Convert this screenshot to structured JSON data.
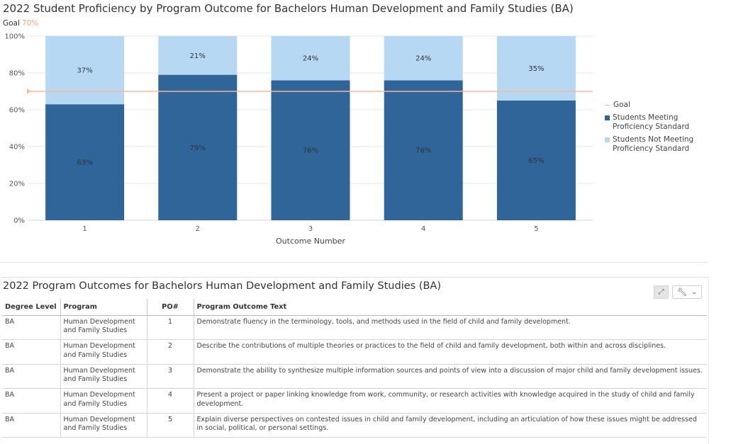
{
  "chart_data": {
    "type": "bar",
    "stacked": true,
    "title": "2022 Student Proficiency by Program Outcome for Bachelors Human Development and Family Studies (BA)",
    "goal_label": "Goal",
    "goal_value_label": "70%",
    "goal_value": 70,
    "xlabel": "Outcome Number",
    "ylabel": "",
    "ylim": [
      0,
      100
    ],
    "yticks": [
      0,
      20,
      40,
      60,
      80,
      100
    ],
    "ytick_labels": [
      "0%",
      "20%",
      "40%",
      "60%",
      "80%",
      "100%"
    ],
    "categories": [
      "1",
      "2",
      "3",
      "4",
      "5"
    ],
    "series": [
      {
        "name": "Students Meeting Proficiency Standard",
        "values": [
          63,
          79,
          76,
          76,
          65
        ],
        "labels": [
          "63%",
          "79%",
          "76%",
          "76%",
          "65%"
        ],
        "color": "#2f6598"
      },
      {
        "name": "Students Not Meeting Proficiency Standard",
        "values": [
          37,
          21,
          24,
          24,
          35
        ],
        "labels": [
          "37%",
          "21%",
          "24%",
          "24%",
          "35%"
        ],
        "color": "#b7d8f2"
      }
    ],
    "goal_color": "#f4b89a",
    "grid": true,
    "legend": {
      "placement": "right",
      "items": [
        {
          "label": "Goal",
          "type": "line",
          "color": "#f4b89a"
        },
        {
          "label": "Students Meeting\nProficiency Standard",
          "type": "box",
          "color": "#2f6598"
        },
        {
          "label": "Students Not Meeting\nProficiency Standard",
          "type": "box",
          "color": "#b7d8f2"
        }
      ]
    }
  },
  "table": {
    "title": "2022 Program Outcomes for Bachelors Human Development and Family Studies (BA)",
    "expand_icon": "expand-icon",
    "tools_icon": "wrench-icon",
    "columns": [
      "Degree Level",
      "Program",
      "PO#",
      "Program Outcome Text"
    ],
    "rows": [
      [
        "BA",
        "Human Development and Family Studies",
        "1",
        "Demonstrate fluency in the terminology, tools, and methods used in the field of child and family development."
      ],
      [
        "BA",
        "Human Development and Family Studies",
        "2",
        "Describe the contributions of multiple theories or practices to the field of child and family development, both within and across disciplines."
      ],
      [
        "BA",
        "Human Development and Family Studies",
        "3",
        "Demonstrate the ability to synthesize multiple information sources and points of view into a discussion of major child and family development issues."
      ],
      [
        "BA",
        "Human Development and Family Studies",
        "4",
        "Present a project or paper linking knowledge from work, community, or research activities with knowledge acquired in the study of child and family development."
      ],
      [
        "BA",
        "Human Development and Family Studies",
        "5",
        "Explain diverse perspectives on contested issues in child and family development, including an articulation of how these issues might be addressed in social, political, or personal settings."
      ]
    ]
  }
}
